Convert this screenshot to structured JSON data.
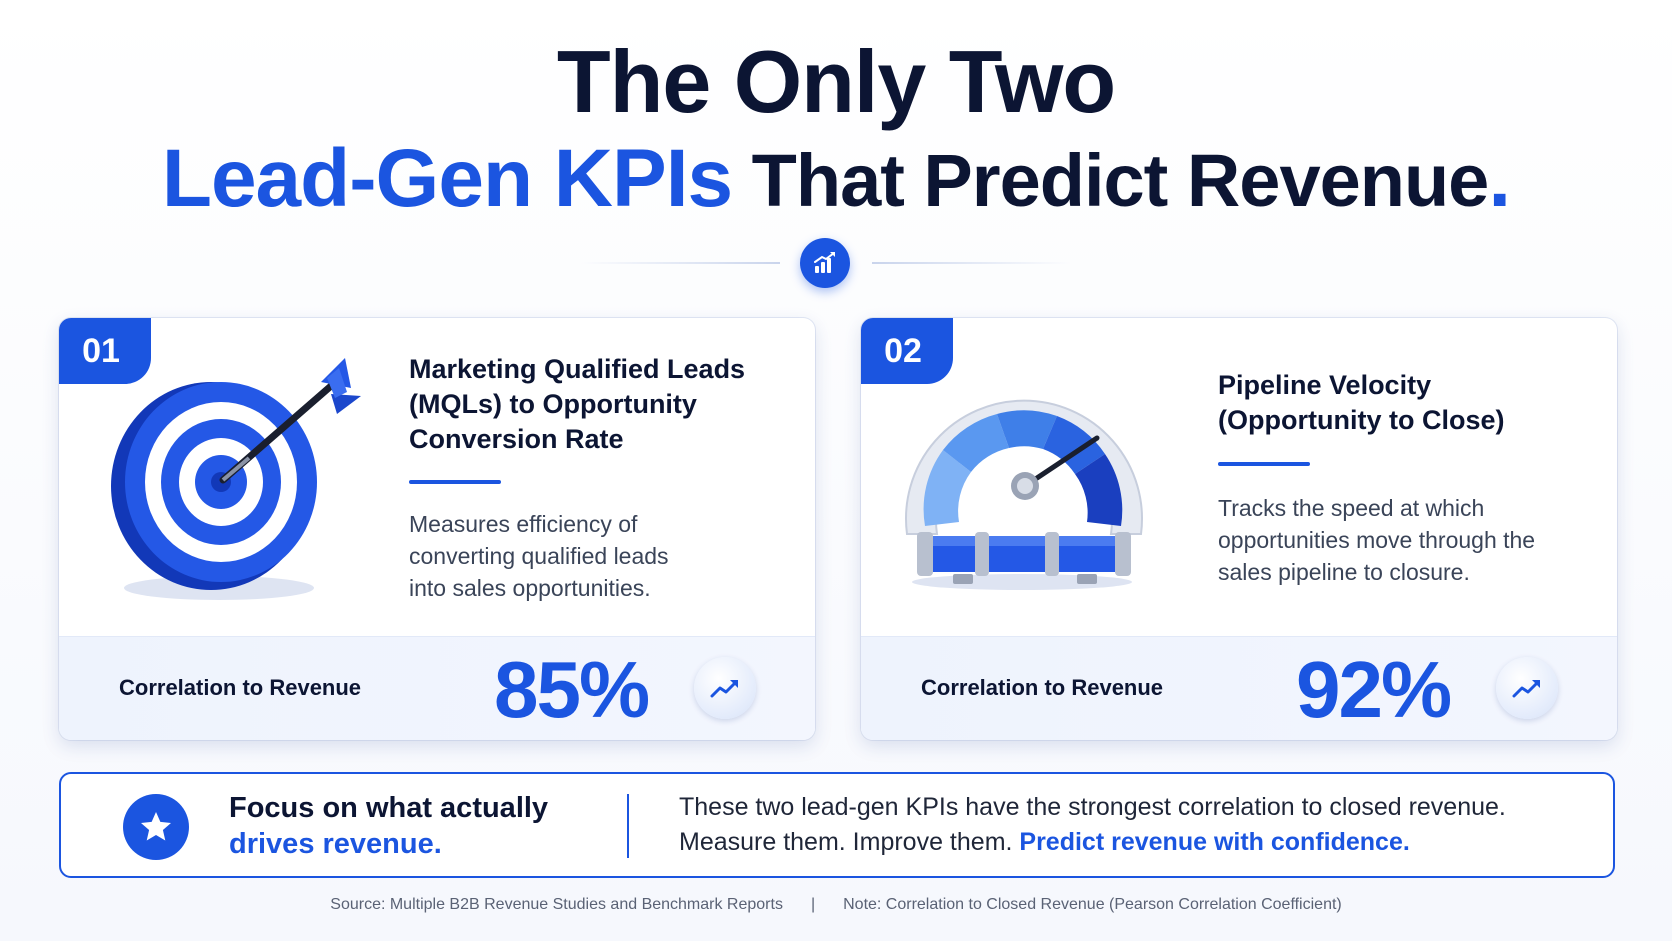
{
  "title": {
    "line1": "The Only Two",
    "line2_highlight": "Lead-Gen KPIs",
    "line2_rest": " That Predict Revenue",
    "line2_period": "."
  },
  "colors": {
    "accent": "#1b55e0",
    "dark": "#0c1533"
  },
  "header_icon": "bar-chart-trend-icon",
  "cards": [
    {
      "number": "01",
      "title": "Marketing Qualified Leads (MQLs) to Opportunity Conversion Rate",
      "description": "Measures efficiency of converting qualified leads into sales opportunities.",
      "correlation_label": "Correlation to Revenue",
      "correlation_value": "85%",
      "illustration": "target-dart-icon",
      "trend_icon": "trend-up-icon"
    },
    {
      "number": "02",
      "title": "Pipeline Velocity (Opportunity to Close)",
      "description": "Tracks the speed at which opportunities move through the sales pipeline to closure.",
      "correlation_label": "Correlation to Revenue",
      "correlation_value": "92%",
      "illustration": "speedometer-pipeline-icon",
      "trend_icon": "trend-up-icon"
    }
  ],
  "banner": {
    "icon": "star-icon",
    "heading_prefix": "Focus on what actually ",
    "heading_highlight": "drives revenue.",
    "text": "These two lead-gen KPIs have the strongest correlation to closed revenue. Measure them. Improve them. ",
    "text_highlight": "Predict revenue with confidence."
  },
  "footer": {
    "source": "Source: Multiple B2B Revenue Studies and Benchmark Reports",
    "separator": "|",
    "note": "Note: Correlation to Closed Revenue (Pearson Correlation Coefficient)"
  }
}
